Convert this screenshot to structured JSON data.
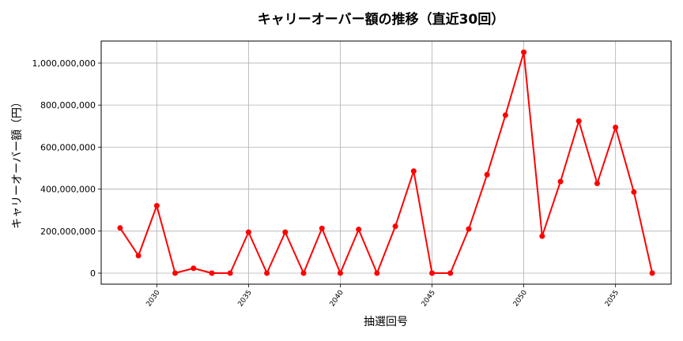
{
  "chart_data": {
    "type": "line",
    "title": "キャリーオーバー額の推移（直近30回）",
    "xlabel": "抽選回号",
    "ylabel": "キャリーオーバー額（円）",
    "x": [
      2028,
      2029,
      2030,
      2031,
      2032,
      2033,
      2034,
      2035,
      2036,
      2037,
      2038,
      2039,
      2040,
      2041,
      2042,
      2043,
      2044,
      2045,
      2046,
      2047,
      2048,
      2049,
      2050,
      2051,
      2052,
      2053,
      2054,
      2055,
      2056,
      2057
    ],
    "series": [
      {
        "name": "キャリーオーバー額",
        "color": "#ff0000",
        "marker": "circle",
        "values": [
          215000000,
          83000000,
          321000000,
          0,
          23000000,
          0,
          0,
          195000000,
          0,
          195000000,
          0,
          213000000,
          0,
          208000000,
          0,
          223000000,
          486000000,
          0,
          0,
          210000000,
          469000000,
          752000000,
          1052000000,
          176000000,
          436000000,
          724000000,
          427000000,
          694000000,
          386000000,
          0
        ]
      }
    ],
    "xticks": [
      2030,
      2035,
      2040,
      2045,
      2050,
      2055
    ],
    "xtick_labels": [
      "2030",
      "2035",
      "2040",
      "2045",
      "2050",
      "2055"
    ],
    "yticks": [
      0,
      200000000,
      400000000,
      600000000,
      800000000,
      1000000000
    ],
    "ytick_labels": [
      "0",
      "200,000,000",
      "400,000,000",
      "600,000,000",
      "800,000,000",
      "1,000,000,000"
    ],
    "xlim": [
      2026.97,
      2058.03
    ],
    "ylim": [
      -52600000,
      1105000000
    ],
    "grid": true,
    "legend": null
  }
}
